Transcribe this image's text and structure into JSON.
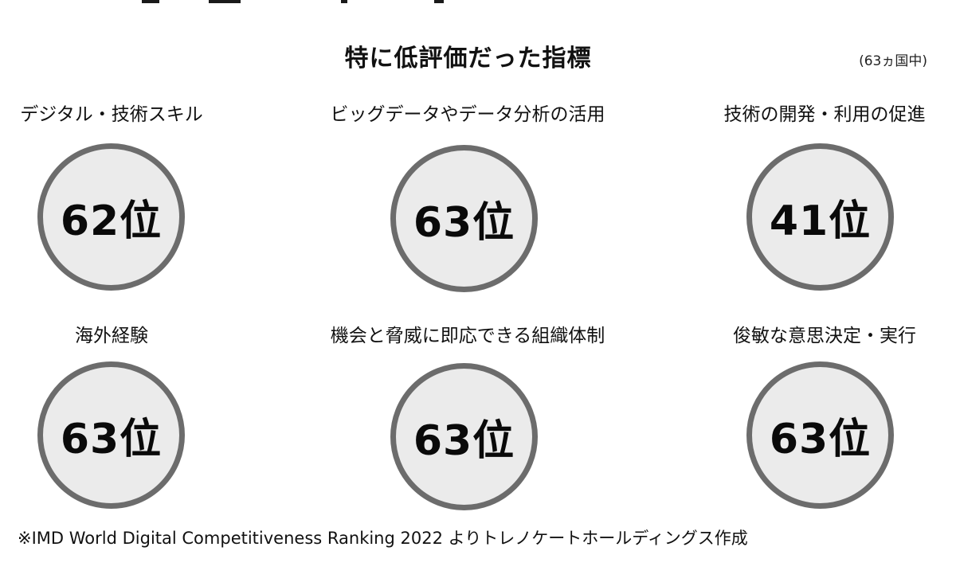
{
  "title": "特に低評価だった指標",
  "note": "(63ヵ国中)",
  "metrics": [
    {
      "label": "デジタル・技術スキル",
      "rank": "62位"
    },
    {
      "label": "ビッグデータやデータ分析の活用",
      "rank": "63位"
    },
    {
      "label": "技術の開発・利用の促進",
      "rank": "41位"
    },
    {
      "label": "海外経験",
      "rank": "63位"
    },
    {
      "label": "機会と脅威に即応できる組織体制",
      "rank": "63位"
    },
    {
      "label": "俊敏な意思決定・実行",
      "rank": "63位"
    }
  ],
  "source": "※IMD World Digital Competitiveness Ranking 2022 よりトレノケートホールディングス作成",
  "colors": {
    "circle_fill": "#ebebeb",
    "circle_border": "#6c6c6c",
    "text": "#111111"
  }
}
